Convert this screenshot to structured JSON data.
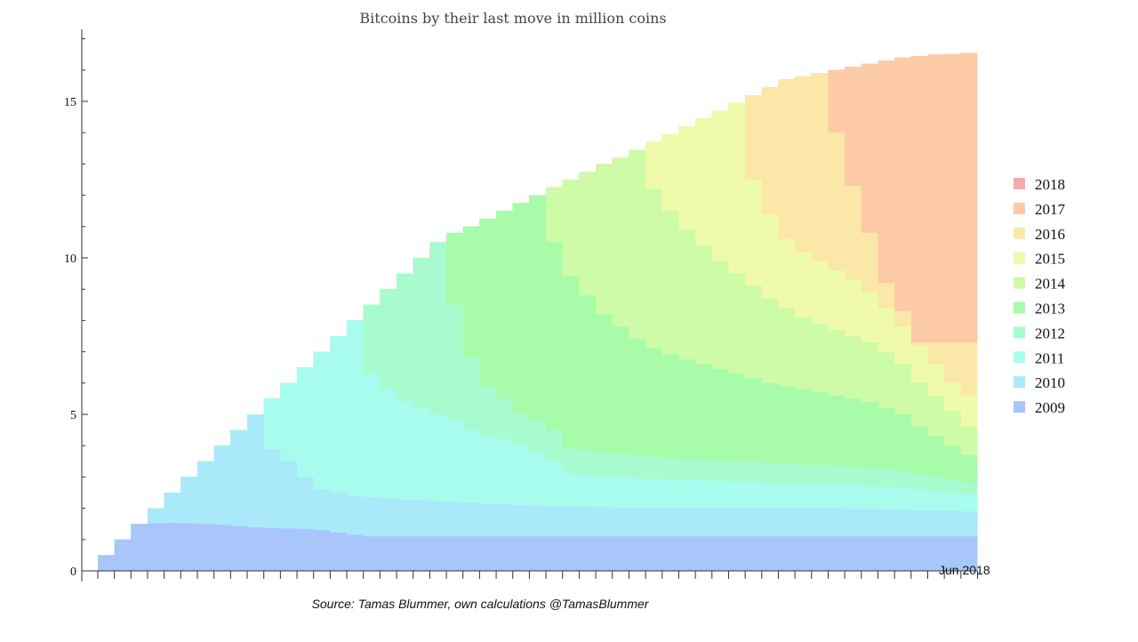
{
  "chart_data": {
    "type": "area",
    "title": "Bitcoins by their last move in million coins",
    "x_label_end": "Jun 2018",
    "source": "Source: Tamas Blummer, own calculations @TamasBlummer",
    "y_ticks": [
      0,
      5,
      10,
      15
    ],
    "ylim": [
      0,
      17.3
    ],
    "legend_position": "right",
    "stacked_step_area": true,
    "x_periods": 53,
    "cohorts": [
      {
        "name": "2009",
        "color": "#a8c6fa"
      },
      {
        "name": "2010",
        "color": "#a9e9fa"
      },
      {
        "name": "2011",
        "color": "#a7fcee"
      },
      {
        "name": "2012",
        "color": "#a8fbcf"
      },
      {
        "name": "2013",
        "color": "#a7fba9"
      },
      {
        "name": "2014",
        "color": "#cdfba7"
      },
      {
        "name": "2015",
        "color": "#effbaa"
      },
      {
        "name": "2016",
        "color": "#fbe7a7"
      },
      {
        "name": "2017",
        "color": "#fdcaa8"
      },
      {
        "name": "2018",
        "color": "#f8a9a9"
      }
    ],
    "cumulative_boundaries": [
      [
        0.5,
        1.0,
        1.5,
        1.52,
        1.53,
        1.52,
        1.5,
        1.47,
        1.43,
        1.39,
        1.36,
        1.35,
        1.34,
        1.3,
        1.22,
        1.15,
        1.1,
        1.1,
        1.1,
        1.1,
        1.1,
        1.1,
        1.1,
        1.1,
        1.1,
        1.1,
        1.1,
        1.1,
        1.1,
        1.1,
        1.1,
        1.1,
        1.1,
        1.1,
        1.1,
        1.1,
        1.1,
        1.1,
        1.1,
        1.1,
        1.1,
        1.1,
        1.1,
        1.1,
        1.1,
        1.1,
        1.1,
        1.1,
        1.1,
        1.1,
        1.1,
        1.1,
        1.1
      ],
      [
        0.5,
        1.0,
        1.5,
        2.0,
        2.5,
        3.0,
        3.5,
        4.0,
        4.5,
        5.0,
        3.9,
        3.5,
        3.0,
        2.6,
        2.5,
        2.4,
        2.35,
        2.3,
        2.28,
        2.25,
        2.22,
        2.2,
        2.18,
        2.15,
        2.12,
        2.1,
        2.08,
        2.06,
        2.05,
        2.04,
        2.03,
        2.02,
        2.02,
        2.01,
        2.01,
        2.01,
        2.0,
        2.0,
        2.0,
        2.0,
        2.0,
        2.0,
        2.0,
        2.0,
        2.0,
        1.98,
        1.97,
        1.96,
        1.95,
        1.94,
        1.93,
        1.92,
        1.9
      ],
      [
        0.5,
        1.0,
        1.5,
        2.0,
        2.5,
        3.0,
        3.5,
        4.0,
        4.5,
        5.0,
        5.5,
        6.0,
        6.5,
        7.0,
        7.5,
        8.0,
        6.3,
        5.8,
        5.4,
        5.2,
        5.0,
        4.8,
        4.5,
        4.3,
        4.2,
        4.0,
        3.8,
        3.5,
        3.1,
        3.05,
        3.0,
        2.98,
        2.95,
        2.93,
        2.91,
        2.9,
        2.88,
        2.86,
        2.85,
        2.83,
        2.82,
        2.8,
        2.78,
        2.76,
        2.75,
        2.72,
        2.7,
        2.68,
        2.65,
        2.6,
        2.55,
        2.5,
        2.45
      ],
      [
        0.5,
        1.0,
        1.5,
        2.0,
        2.5,
        3.0,
        3.5,
        4.0,
        4.5,
        5.0,
        5.5,
        6.0,
        6.5,
        7.0,
        7.5,
        8.0,
        8.5,
        9.0,
        9.5,
        10.0,
        10.5,
        8.5,
        6.8,
        5.9,
        5.5,
        5.0,
        4.8,
        4.5,
        3.9,
        3.85,
        3.8,
        3.75,
        3.7,
        3.65,
        3.6,
        3.58,
        3.55,
        3.52,
        3.5,
        3.48,
        3.45,
        3.42,
        3.4,
        3.38,
        3.36,
        3.33,
        3.3,
        3.25,
        3.2,
        3.1,
        3.0,
        2.9,
        2.8
      ],
      [
        0.5,
        1.0,
        1.5,
        2.0,
        2.5,
        3.0,
        3.5,
        4.0,
        4.5,
        5.0,
        5.5,
        6.0,
        6.5,
        7.0,
        7.5,
        8.0,
        8.5,
        9.0,
        9.5,
        10.0,
        10.5,
        10.8,
        11.0,
        11.25,
        11.5,
        11.75,
        12.0,
        10.5,
        9.4,
        8.8,
        8.2,
        7.8,
        7.4,
        7.1,
        6.9,
        6.75,
        6.6,
        6.45,
        6.3,
        6.15,
        6.0,
        5.9,
        5.8,
        5.7,
        5.6,
        5.5,
        5.4,
        5.2,
        5.0,
        4.6,
        4.3,
        4.0,
        3.7
      ],
      [
        0.5,
        1.0,
        1.5,
        2.0,
        2.5,
        3.0,
        3.5,
        4.0,
        4.5,
        5.0,
        5.5,
        6.0,
        6.5,
        7.0,
        7.5,
        8.0,
        8.5,
        9.0,
        9.5,
        10.0,
        10.5,
        10.8,
        11.0,
        11.25,
        11.5,
        11.75,
        12.0,
        12.25,
        12.5,
        12.75,
        13.0,
        13.2,
        13.45,
        12.2,
        11.5,
        10.9,
        10.4,
        9.9,
        9.5,
        9.1,
        8.7,
        8.4,
        8.1,
        7.9,
        7.7,
        7.5,
        7.3,
        7.0,
        6.6,
        6.0,
        5.6,
        5.1,
        4.6
      ],
      [
        0.5,
        1.0,
        1.5,
        2.0,
        2.5,
        3.0,
        3.5,
        4.0,
        4.5,
        5.0,
        5.5,
        6.0,
        6.5,
        7.0,
        7.5,
        8.0,
        8.5,
        9.0,
        9.5,
        10.0,
        10.5,
        10.8,
        11.0,
        11.25,
        11.5,
        11.75,
        12.0,
        12.25,
        12.5,
        12.75,
        13.0,
        13.2,
        13.45,
        13.7,
        13.95,
        14.2,
        14.45,
        14.7,
        14.95,
        12.5,
        11.4,
        10.6,
        10.2,
        9.9,
        9.6,
        9.3,
        8.9,
        8.4,
        7.8,
        7.2,
        6.6,
        6.0,
        5.6
      ],
      [
        0.5,
        1.0,
        1.5,
        2.0,
        2.5,
        3.0,
        3.5,
        4.0,
        4.5,
        5.0,
        5.5,
        6.0,
        6.5,
        7.0,
        7.5,
        8.0,
        8.5,
        9.0,
        9.5,
        10.0,
        10.5,
        10.8,
        11.0,
        11.25,
        11.5,
        11.75,
        12.0,
        12.25,
        12.5,
        12.75,
        13.0,
        13.2,
        13.45,
        13.7,
        13.95,
        14.2,
        14.45,
        14.7,
        14.95,
        15.2,
        15.45,
        15.7,
        15.8,
        15.9,
        14.0,
        12.3,
        10.8,
        9.2,
        8.3,
        7.3,
        7.3,
        7.3,
        7.3
      ],
      [
        0.5,
        1.0,
        1.5,
        2.0,
        2.5,
        3.0,
        3.5,
        4.0,
        4.5,
        5.0,
        5.5,
        6.0,
        6.5,
        7.0,
        7.5,
        8.0,
        8.5,
        9.0,
        9.5,
        10.0,
        10.5,
        10.8,
        11.0,
        11.25,
        11.5,
        11.75,
        12.0,
        12.25,
        12.5,
        12.75,
        13.0,
        13.2,
        13.45,
        13.7,
        13.95,
        14.2,
        14.45,
        14.7,
        14.95,
        15.2,
        15.45,
        15.7,
        15.8,
        15.9,
        16.0,
        16.1,
        16.2,
        16.3,
        16.4,
        16.45,
        16.5,
        16.52,
        16.55
      ],
      [
        0.5,
        1.0,
        1.5,
        2.0,
        2.5,
        3.0,
        3.5,
        4.0,
        4.5,
        5.0,
        5.5,
        6.0,
        6.5,
        7.0,
        7.5,
        8.0,
        8.5,
        9.0,
        9.5,
        10.0,
        10.5,
        10.8,
        11.0,
        11.25,
        11.5,
        11.75,
        12.0,
        12.25,
        12.5,
        12.75,
        13.0,
        13.2,
        13.45,
        13.7,
        13.95,
        14.2,
        14.45,
        14.7,
        14.95,
        15.2,
        15.45,
        15.7,
        15.8,
        15.9,
        16.0,
        16.1,
        16.2,
        16.3,
        16.4,
        16.45,
        16.5,
        16.52,
        16.55
      ]
    ]
  }
}
